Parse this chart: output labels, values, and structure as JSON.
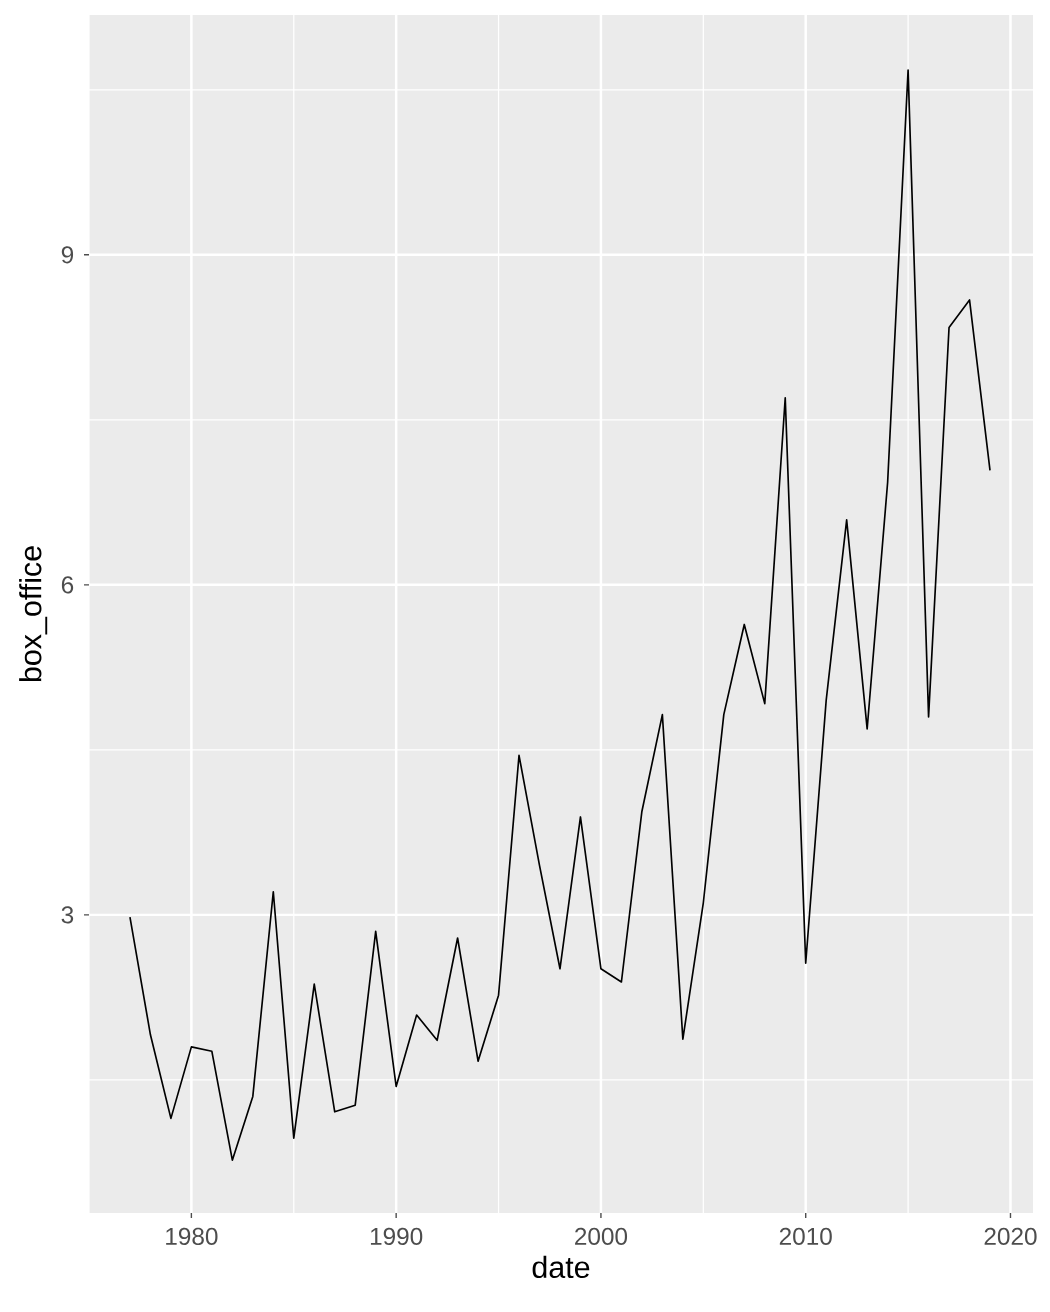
{
  "chart_data": {
    "type": "line",
    "xlabel": "date",
    "ylabel": "box_office",
    "color": "#000000",
    "grid": true,
    "x": [
      1977,
      1978,
      1979,
      1980,
      1981,
      1982,
      1983,
      1984,
      1985,
      1986,
      1987,
      1988,
      1989,
      1990,
      1991,
      1992,
      1993,
      1994,
      1995,
      1996,
      1997,
      1998,
      1999,
      2000,
      2001,
      2002,
      2003,
      2004,
      2005,
      2006,
      2007,
      2008,
      2009,
      2010,
      2011,
      2012,
      2013,
      2014,
      2015,
      2016,
      2017,
      2018,
      2019
    ],
    "values": [
      2.98,
      1.91,
      1.15,
      1.8,
      1.76,
      0.77,
      1.35,
      3.21,
      0.97,
      2.37,
      1.21,
      1.27,
      2.85,
      1.44,
      2.09,
      1.86,
      2.79,
      1.67,
      2.27,
      4.45,
      3.45,
      2.51,
      3.89,
      2.51,
      2.39,
      3.94,
      4.82,
      1.87,
      3.11,
      4.82,
      5.64,
      4.92,
      7.7,
      2.56,
      4.95,
      6.59,
      4.69,
      6.93,
      10.68,
      4.8,
      8.34,
      8.59,
      7.04
    ],
    "xlim": [
      1975.0,
      2021.1
    ],
    "ylim": [
      0.29,
      11.18
    ],
    "xticks": [
      1980,
      1990,
      2000,
      2010,
      2020
    ],
    "yticks": [
      3,
      6,
      9
    ]
  }
}
